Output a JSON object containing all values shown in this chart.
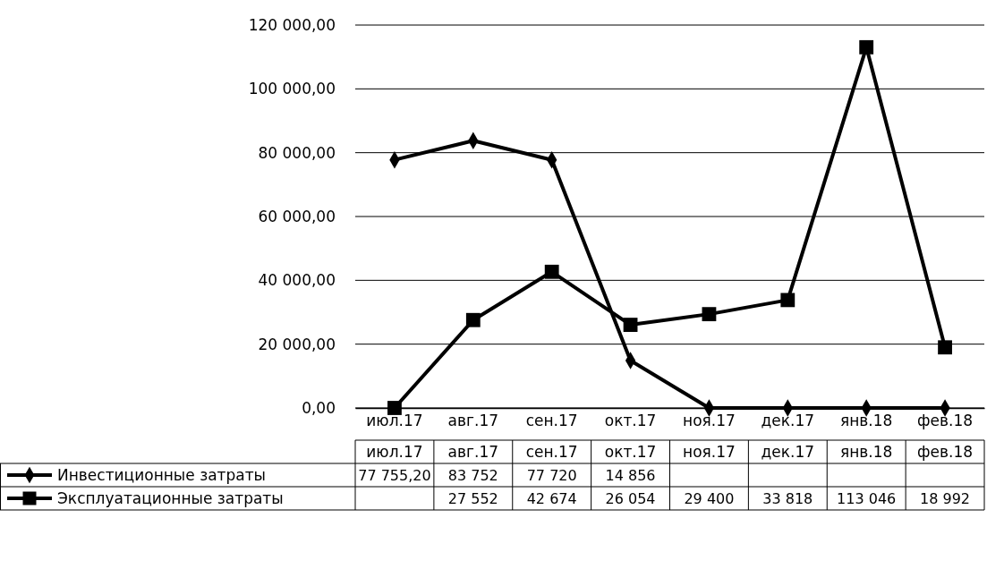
{
  "chart_data": {
    "type": "line",
    "categories": [
      "июл.17",
      "авг.17",
      "сен.17",
      "окт.17",
      "ноя.17",
      "дек.17",
      "янв.18",
      "фев.18"
    ],
    "series": [
      {
        "name": "Инвестиционные затраты",
        "color": "#000000",
        "marker": "diamond",
        "values": [
          77755.2,
          83752,
          77720,
          14856,
          0,
          0,
          0,
          0
        ],
        "value_labels": [
          "77 755,20",
          "83 752",
          "77 720",
          "14 856",
          null,
          null,
          null,
          null
        ]
      },
      {
        "name": "Эксплуатационные затраты",
        "color": "#000000",
        "marker": "square",
        "values": [
          0,
          27552,
          42674,
          26054,
          29400,
          33818,
          113046,
          18992
        ],
        "value_labels": [
          null,
          "27 552",
          "42 674",
          "26 054",
          "29 400",
          "33 818",
          "113 046",
          "18 992"
        ]
      }
    ],
    "ylim": [
      0,
      120000
    ],
    "yticks": [
      {
        "value": 0,
        "label": "0,00"
      },
      {
        "value": 20000,
        "label": "20 000,00"
      },
      {
        "value": 40000,
        "label": "40 000,00"
      },
      {
        "value": 60000,
        "label": "60 000,00"
      },
      {
        "value": 80000,
        "label": "80 000,00"
      },
      {
        "value": 100000,
        "label": "100 000,00"
      },
      {
        "value": 120000,
        "label": "120 000,00"
      }
    ],
    "grid": "y",
    "legend": "bottom",
    "line_style": "solid"
  }
}
